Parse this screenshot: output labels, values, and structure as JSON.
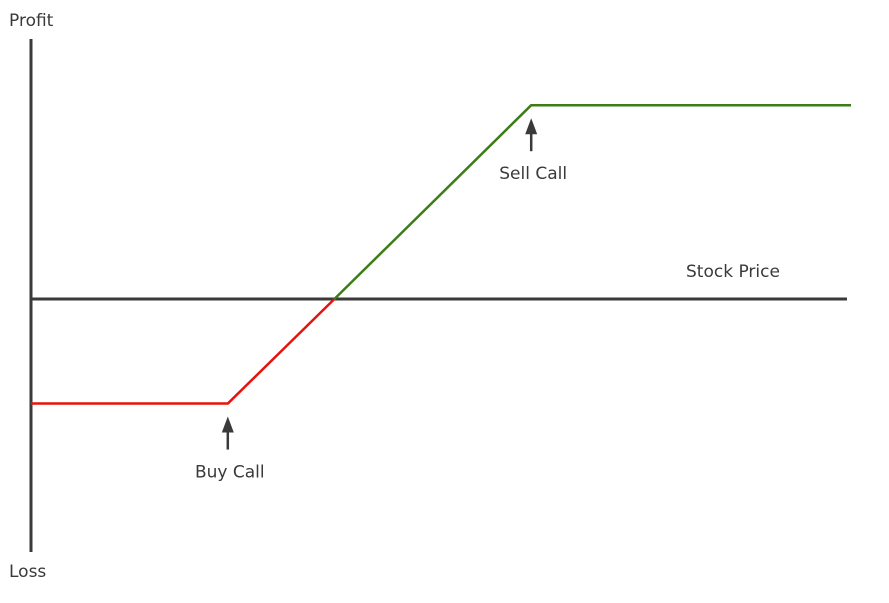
{
  "chart_data": {
    "type": "line",
    "title": "",
    "xlabel": "Stock Price",
    "ylabel_top": "Profit",
    "ylabel_bottom": "Loss",
    "xlim": [
      0,
      100
    ],
    "ylim": [
      -100,
      100
    ],
    "grid": false,
    "legend": "none",
    "series": [
      {
        "color": "#e8120c",
        "x": [
          0,
          24,
          37
        ],
        "y": [
          -41,
          -41,
          0
        ]
      },
      {
        "color": "#3c7d18",
        "x": [
          37,
          61,
          100
        ],
        "y": [
          0,
          76,
          76
        ]
      }
    ],
    "annotations": [
      {
        "text": "Buy Call",
        "x": 24,
        "y": -41
      },
      {
        "text": "Sell Call",
        "x": 61,
        "y": 76
      }
    ],
    "colors": {
      "axis": "#3a3a3a",
      "text": "#3a3a3a"
    }
  }
}
